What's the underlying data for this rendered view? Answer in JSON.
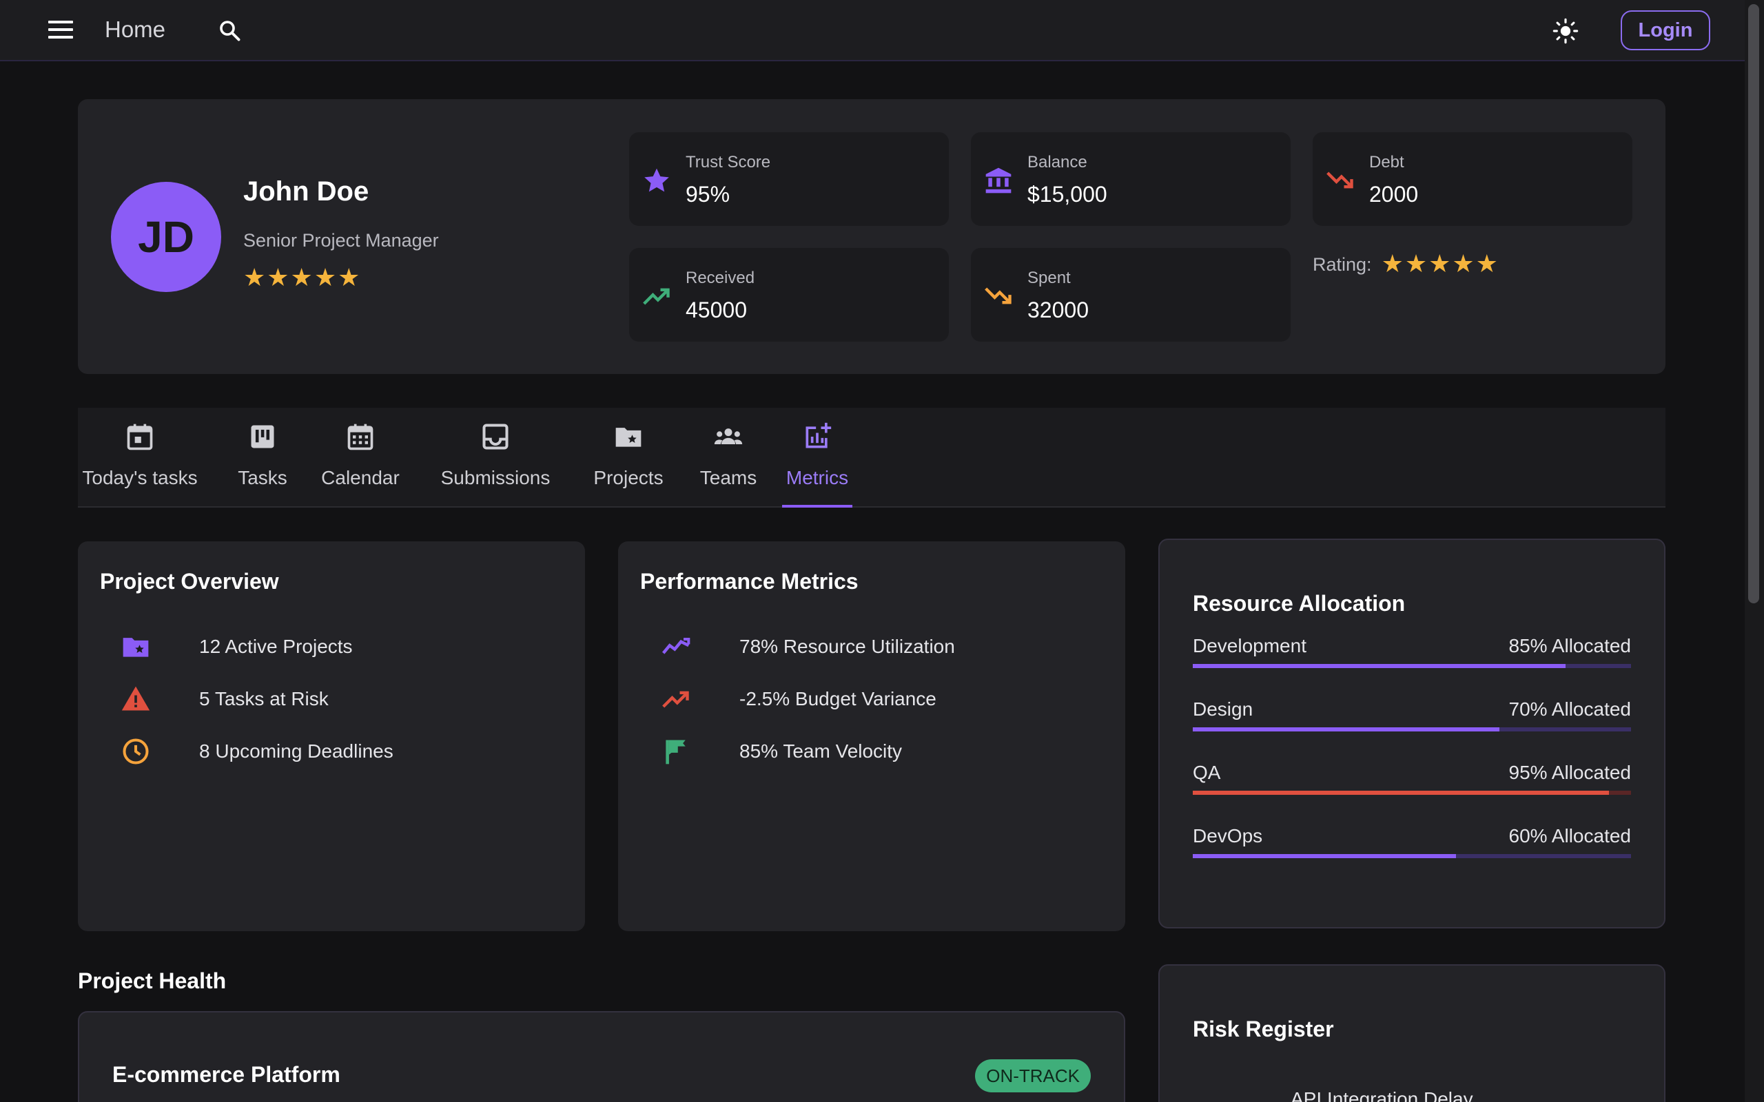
{
  "appbar": {
    "home_label": "Home",
    "login_label": "Login"
  },
  "profile": {
    "initials": "JD",
    "name": "John Doe",
    "title": "Senior Project Manager",
    "stars": "★★★★★",
    "stats": [
      {
        "label": "Trust Score",
        "value": "95%",
        "icon": "star-icon"
      },
      {
        "label": "Balance",
        "value": "$15,000",
        "icon": "bank-icon"
      },
      {
        "label": "Debt",
        "value": "2000",
        "icon": "trending-down-icon"
      },
      {
        "label": "Received",
        "value": "45000",
        "icon": "trending-up-icon"
      },
      {
        "label": "Spent",
        "value": "32000",
        "icon": "trending-down-icon"
      }
    ],
    "rating_label": "Rating:",
    "rating_stars": "★★★★★"
  },
  "tabs": [
    {
      "label": "Today's tasks",
      "icon": "event-icon"
    },
    {
      "label": "Tasks",
      "icon": "kanban-icon"
    },
    {
      "label": "Calendar",
      "icon": "calendar-icon"
    },
    {
      "label": "Submissions",
      "icon": "inbox-icon"
    },
    {
      "label": "Projects",
      "icon": "folder-star-icon"
    },
    {
      "label": "Teams",
      "icon": "groups-icon"
    },
    {
      "label": "Metrics",
      "icon": "chart-add-icon",
      "active": true
    }
  ],
  "overview": {
    "title": "Project Overview",
    "items": [
      {
        "text": "12 Active Projects",
        "icon": "folder-star-icon"
      },
      {
        "text": "5 Tasks at Risk",
        "icon": "warning-icon"
      },
      {
        "text": "8 Upcoming Deadlines",
        "icon": "clock-icon"
      }
    ]
  },
  "performance": {
    "title": "Performance Metrics",
    "items": [
      {
        "text": "78% Resource Utilization",
        "icon": "trending-icon"
      },
      {
        "text": "-2.5% Budget Variance",
        "icon": "trending-up-icon"
      },
      {
        "text": "85% Team Velocity",
        "icon": "flag-icon"
      }
    ]
  },
  "resources": {
    "title": "Resource Allocation",
    "items": [
      {
        "name": "Development",
        "label": "85% Allocated",
        "value": 0.85
      },
      {
        "name": "Design",
        "label": "70% Allocated",
        "value": 0.7
      },
      {
        "name": "QA",
        "label": "95% Allocated",
        "value": 0.95,
        "danger": true
      },
      {
        "name": "DevOps",
        "label": "60% Allocated",
        "value": 0.6
      }
    ]
  },
  "health": {
    "title": "Project Health",
    "project_name": "E-commerce Platform",
    "status": "ON-TRACK"
  },
  "risk": {
    "title": "Risk Register",
    "first_item": "API Integration Delay"
  },
  "colors": {
    "accent": "#8b5cf6",
    "danger": "#e0503f",
    "success": "#3fae7a",
    "warning": "#f5a33c",
    "star": "#f5b43c"
  }
}
